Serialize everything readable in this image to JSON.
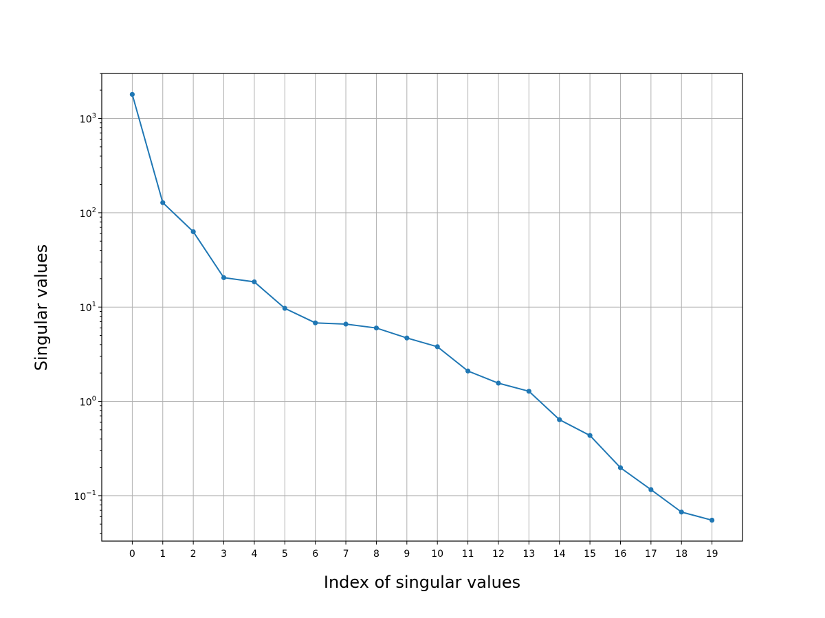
{
  "chart_data": {
    "type": "line",
    "title": "",
    "xlabel": "Index of singular values",
    "ylabel": "Singular values",
    "y_scale": "log",
    "ylim": [
      0.033,
      3000
    ],
    "xlim": [
      -1,
      20
    ],
    "grid": true,
    "line_color": "#1f77b4",
    "marker": "circle",
    "x": [
      0,
      1,
      2,
      3,
      4,
      5,
      6,
      7,
      8,
      9,
      10,
      11,
      12,
      13,
      14,
      15,
      16,
      17,
      18,
      19
    ],
    "values": [
      1800,
      128,
      63,
      20.5,
      18.5,
      9.7,
      6.8,
      6.6,
      6.0,
      4.7,
      3.8,
      2.1,
      1.56,
      1.28,
      0.64,
      0.435,
      0.198,
      0.116,
      0.067,
      0.055
    ],
    "x_tick_labels": [
      "0",
      "1",
      "2",
      "3",
      "4",
      "5",
      "6",
      "7",
      "8",
      "9",
      "10",
      "11",
      "12",
      "13",
      "14",
      "15",
      "16",
      "17",
      "18",
      "19"
    ],
    "y_ticks": [
      {
        "value": 0.1,
        "base": "10",
        "exp": "−1"
      },
      {
        "value": 1,
        "base": "10",
        "exp": "0"
      },
      {
        "value": 10,
        "base": "10",
        "exp": "1"
      },
      {
        "value": 100,
        "base": "10",
        "exp": "2"
      },
      {
        "value": 1000,
        "base": "10",
        "exp": "3"
      }
    ]
  }
}
